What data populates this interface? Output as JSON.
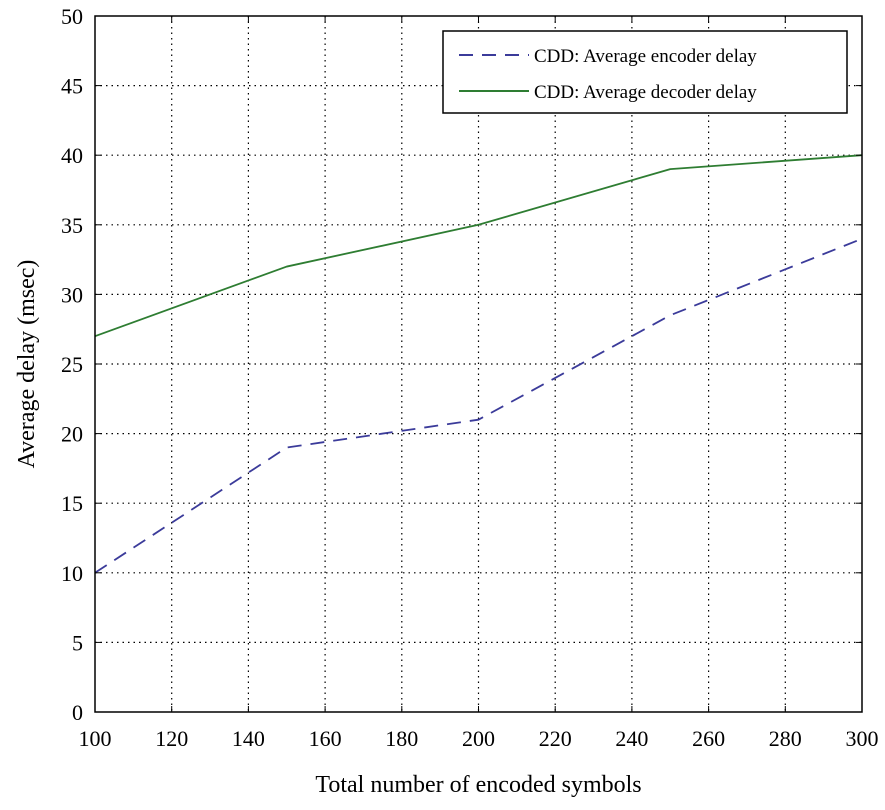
{
  "chart_data": {
    "type": "line",
    "title": "",
    "xlabel": "Total number of encoded symbols",
    "ylabel": "Average delay (msec)",
    "xlim": [
      100,
      300
    ],
    "ylim": [
      0,
      50
    ],
    "xticks": [
      100,
      120,
      140,
      160,
      180,
      200,
      220,
      240,
      260,
      280,
      300
    ],
    "yticks": [
      0,
      5,
      10,
      15,
      20,
      25,
      30,
      35,
      40,
      45,
      50
    ],
    "grid": true,
    "legend_position": "top-right",
    "series": [
      {
        "name": "CDD: Average encoder delay",
        "color": "#3b3b9a",
        "style": "dashed",
        "x": [
          100,
          150,
          200,
          250,
          300
        ],
        "y": [
          10,
          19,
          21,
          28.5,
          34
        ]
      },
      {
        "name": "CDD: Average decoder delay",
        "color": "#2e7d32",
        "style": "solid",
        "x": [
          100,
          150,
          200,
          250,
          300
        ],
        "y": [
          27,
          32,
          35,
          39,
          40
        ]
      }
    ]
  }
}
